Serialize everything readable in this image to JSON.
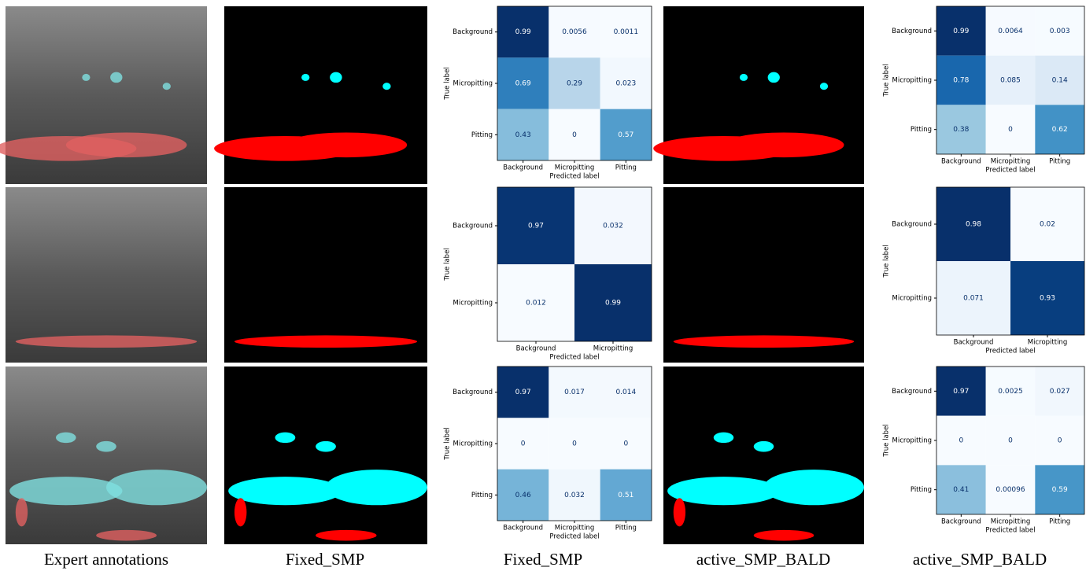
{
  "captions": [
    "Expert annotations",
    "Fixed_SMP",
    "Fixed_SMP",
    "active_SMP_BALD",
    "active_SMP_BALD"
  ],
  "colormap": "Blues",
  "matrices": [
    {
      "classes": [
        "Background",
        "Micropitting",
        "Pitting"
      ],
      "ylabel": "True label",
      "xlabel": "Predicted label",
      "values": [
        [
          0.99,
          0.0056,
          0.0011
        ],
        [
          0.69,
          0.29,
          0.023
        ],
        [
          0.43,
          0,
          0.57
        ]
      ]
    },
    {
      "classes": [
        "Background",
        "Micropitting",
        "Pitting"
      ],
      "ylabel": "True label",
      "xlabel": "Predicted label",
      "values": [
        [
          0.99,
          0.0064,
          0.003
        ],
        [
          0.78,
          0.085,
          0.14
        ],
        [
          0.38,
          0,
          0.62
        ]
      ]
    },
    {
      "classes": [
        "Background",
        "Micropitting"
      ],
      "ylabel": "True label",
      "xlabel": "Predicted label",
      "values": [
        [
          0.97,
          0.032
        ],
        [
          0.012,
          0.99
        ]
      ]
    },
    {
      "classes": [
        "Background",
        "Micropitting"
      ],
      "ylabel": "True label",
      "xlabel": "Predicted label",
      "values": [
        [
          0.98,
          0.02
        ],
        [
          0.071,
          0.93
        ]
      ]
    },
    {
      "classes": [
        "Background",
        "Micropitting",
        "Pitting"
      ],
      "ylabel": "True label",
      "xlabel": "Predicted label",
      "values": [
        [
          0.97,
          0.017,
          0.014
        ],
        [
          0,
          0,
          0
        ],
        [
          0.46,
          0.032,
          0.51
        ]
      ]
    },
    {
      "classes": [
        "Background",
        "Micropitting",
        "Pitting"
      ],
      "ylabel": "True label",
      "xlabel": "Predicted label",
      "values": [
        [
          0.97,
          0.0025,
          0.027
        ],
        [
          0,
          0,
          0
        ],
        [
          0.41,
          0.00096,
          0.59
        ]
      ]
    }
  ]
}
